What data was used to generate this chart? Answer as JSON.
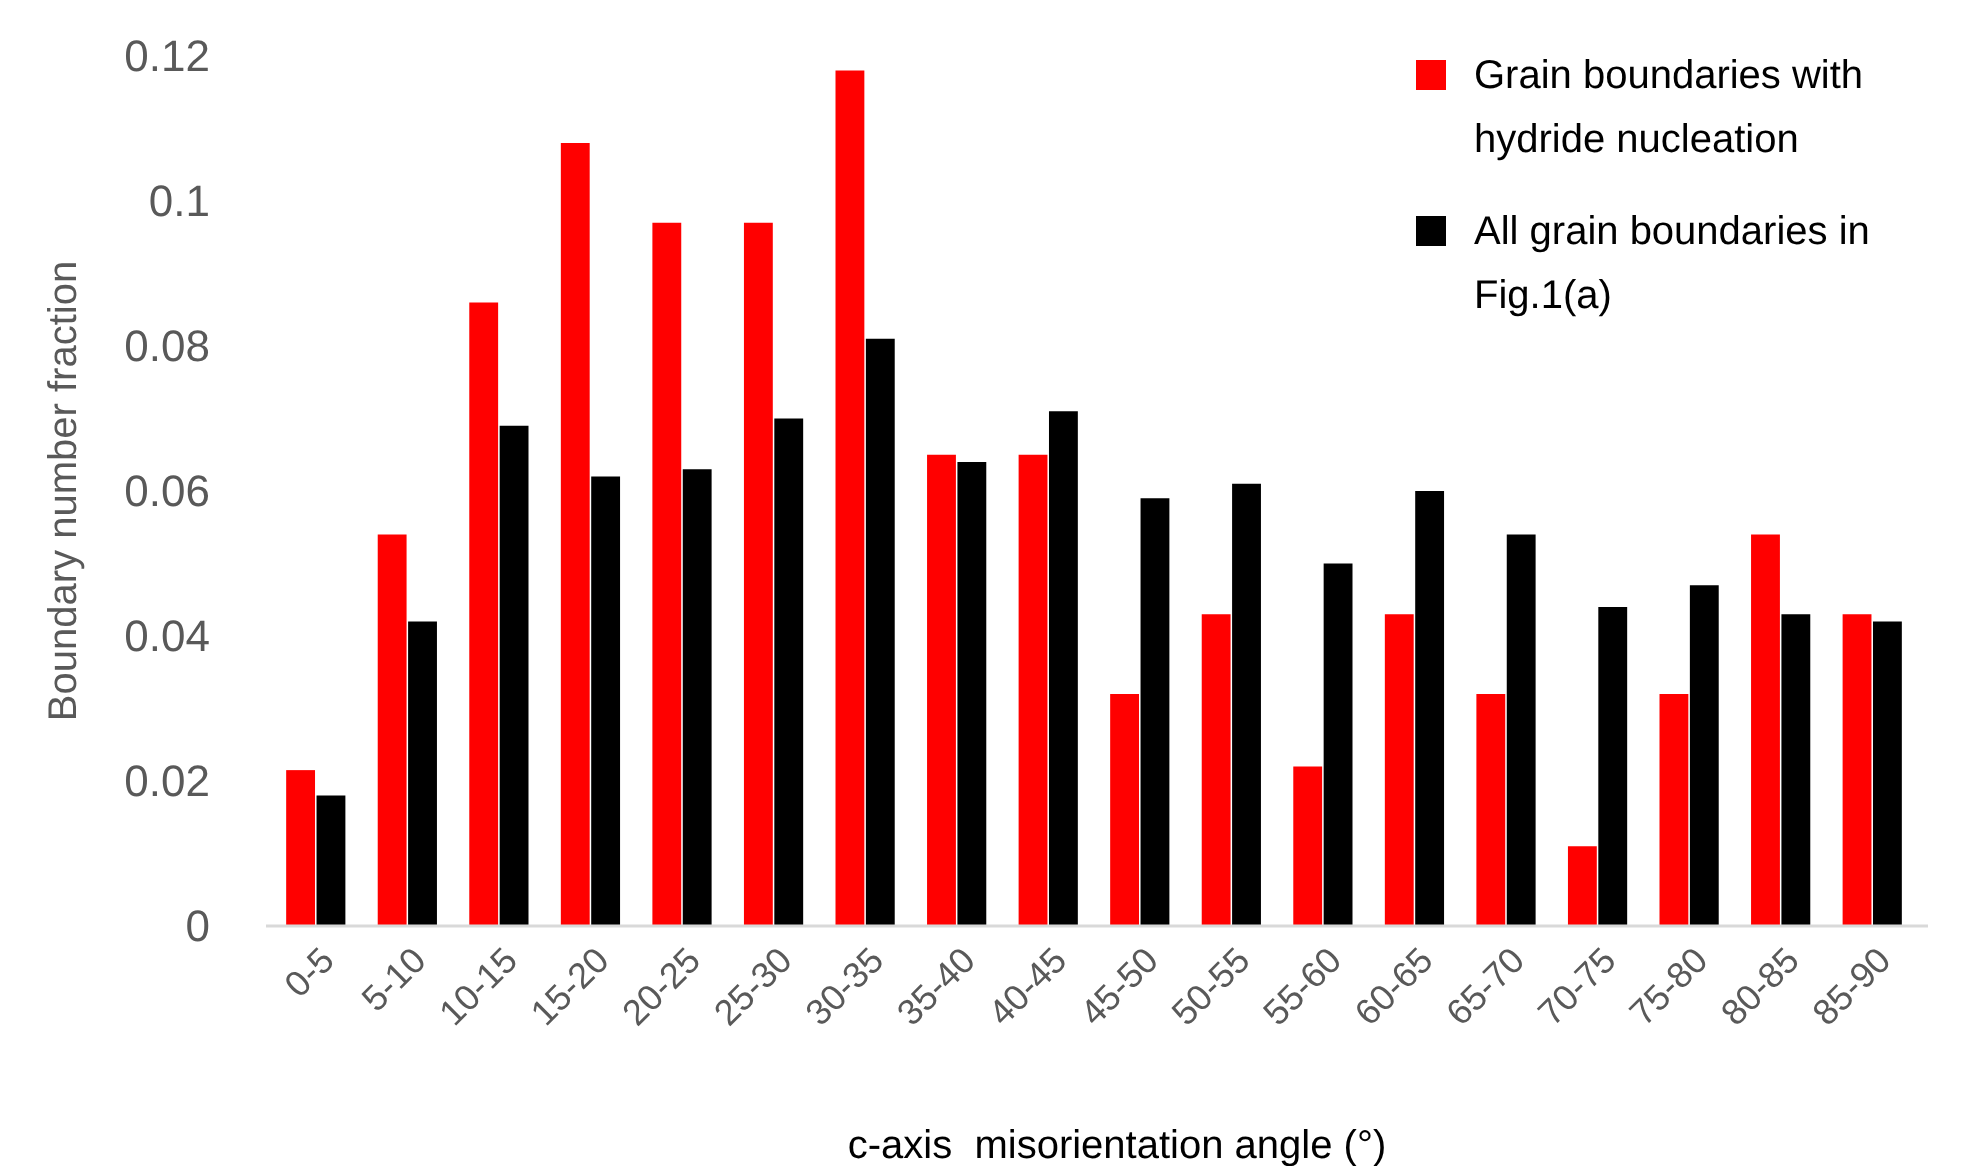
{
  "chart_data": {
    "type": "bar",
    "xlabel": "c-axis  misorientation angle (°)",
    "ylabel": "Boundary number fraction",
    "categories": [
      "0-5",
      "5-10",
      "10-15",
      "15-20",
      "20-25",
      "25-30",
      "30-35",
      "35-40",
      "40-45",
      "45-50",
      "50-55",
      "55-60",
      "60-65",
      "65-70",
      "70-75",
      "75-80",
      "80-85",
      "85-90"
    ],
    "series": [
      {
        "name": "Grain boundaries with hydride nucleation",
        "color": "#ff0000",
        "values": [
          0.0215,
          0.054,
          0.086,
          0.108,
          0.097,
          0.097,
          0.118,
          0.065,
          0.065,
          0.032,
          0.043,
          0.022,
          0.043,
          0.032,
          0.011,
          0.032,
          0.054,
          0.043
        ]
      },
      {
        "name": "All grain boundaries in Fig.1(a)",
        "color": "#000000",
        "values": [
          0.018,
          0.042,
          0.069,
          0.062,
          0.063,
          0.07,
          0.081,
          0.064,
          0.071,
          0.059,
          0.061,
          0.05,
          0.06,
          0.054,
          0.044,
          0.047,
          0.043,
          0.042
        ]
      }
    ],
    "ylim": [
      0,
      0.12
    ],
    "yticks": [
      0,
      0.02,
      0.04,
      0.06,
      0.08,
      0.1,
      0.12
    ],
    "grid": false,
    "legend": "top right"
  }
}
